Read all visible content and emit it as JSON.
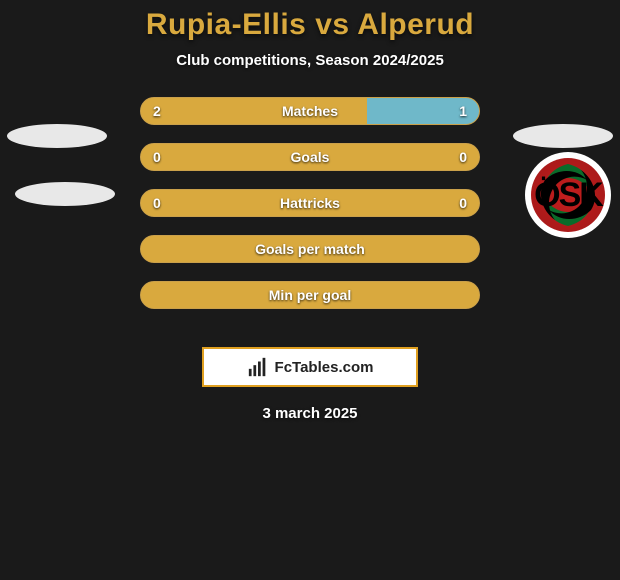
{
  "title": {
    "text": "Rupia-Ellis vs Alperud",
    "color": "#d9a93e",
    "fontsize": 30
  },
  "subtitle": {
    "text": "Club competitions, Season 2024/2025",
    "color": "#ffffff",
    "fontsize": 15
  },
  "palette": {
    "background": "#1a1a1a",
    "bar_primary": "#d9a93e",
    "bar_secondary": "#6fb8c9",
    "bar_border": "#caa04a",
    "text": "#ffffff"
  },
  "bars": [
    {
      "label": "Matches",
      "left_value": 2,
      "right_value": 1,
      "left_pct": 67,
      "right_pct": 33,
      "show_values": true
    },
    {
      "label": "Goals",
      "left_value": 0,
      "right_value": 0,
      "left_pct": 100,
      "right_pct": 0,
      "show_values": true
    },
    {
      "label": "Hattricks",
      "left_value": 0,
      "right_value": 0,
      "left_pct": 100,
      "right_pct": 0,
      "show_values": true
    },
    {
      "label": "Goals per match",
      "left_value": null,
      "right_value": null,
      "left_pct": 100,
      "right_pct": 0,
      "show_values": false
    },
    {
      "label": "Min per goal",
      "left_value": null,
      "right_value": null,
      "left_pct": 100,
      "right_pct": 0,
      "show_values": false
    }
  ],
  "bar_style": {
    "height": 28,
    "radius": 14,
    "gap": 18,
    "fontsize": 14
  },
  "brand": {
    "logo_text": "FcTables.com",
    "border_color": "#e0a020",
    "bg": "#ffffff",
    "text_color": "#222222"
  },
  "date": "3 march 2025",
  "club_logo_right": {
    "outer_bg": "#ffffff",
    "inner_bg": "#b51d1d",
    "swirl_colors": [
      "#0a6b2a",
      "#000000"
    ],
    "text": "ÖSK",
    "text_color": "#000000"
  }
}
